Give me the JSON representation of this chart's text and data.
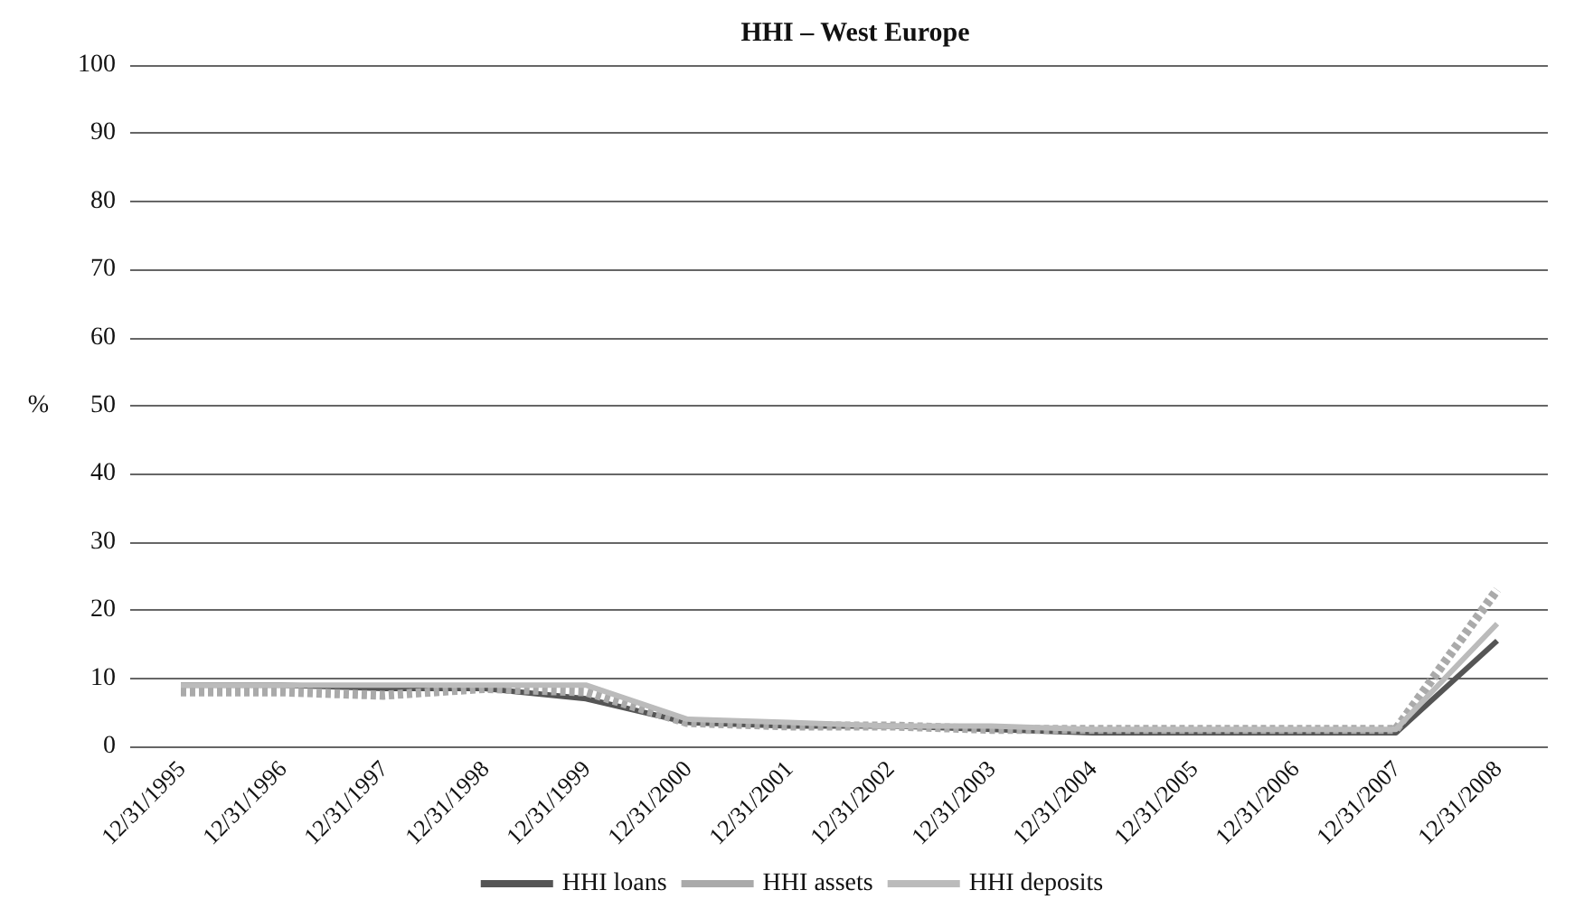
{
  "chart_data": {
    "type": "line",
    "title": "HHI – West Europe",
    "ylabel": "%",
    "categories": [
      "12/31/1995",
      "12/31/1996",
      "12/31/1997",
      "12/31/1998",
      "12/31/1999",
      "12/31/2000",
      "12/31/2001",
      "12/31/2002",
      "12/31/2003",
      "12/31/2004",
      "12/31/2005",
      "12/31/2006",
      "12/31/2007",
      "12/31/2008"
    ],
    "series": [
      {
        "name": "HHI loans",
        "color": "#555555",
        "line_style": "solid",
        "values": [
          9,
          9,
          8.5,
          8.5,
          7,
          3.5,
          3,
          3,
          2.5,
          2,
          2,
          2,
          2,
          15.5
        ]
      },
      {
        "name": "HHI assets",
        "color": "#aaaaaa",
        "line_style": "dotted",
        "values": [
          8,
          8,
          7.5,
          8.5,
          8,
          3.5,
          3,
          3,
          2.5,
          2.5,
          2.5,
          2.5,
          2.5,
          23
        ]
      },
      {
        "name": "HHI deposits",
        "color": "#bbbbbb",
        "line_style": "solid",
        "values": [
          9,
          9,
          9,
          9,
          9,
          4,
          3.5,
          3,
          3,
          2.5,
          2.5,
          2.5,
          2.5,
          18
        ]
      }
    ],
    "ylim": [
      0,
      100
    ],
    "yticks": [
      0,
      10,
      20,
      30,
      40,
      50,
      60,
      70,
      80,
      90,
      100
    ],
    "grid": "y",
    "legend": "bottom",
    "marker": "none"
  }
}
